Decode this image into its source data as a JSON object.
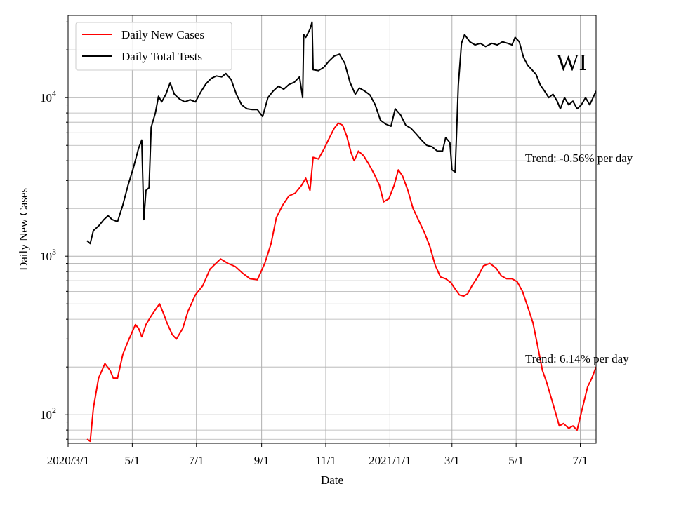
{
  "chart_data": {
    "type": "line",
    "title": "",
    "xlabel": "Date",
    "ylabel": "Daily New Cases",
    "y_scale": "log",
    "ylim": [
      66,
      33000
    ],
    "xlim": [
      "2020-03-01",
      "2021-07-16"
    ],
    "grid": true,
    "legend_position": "upper left",
    "x_ticks": [
      {
        "date": "2020-03-01",
        "label": "2020/3/1"
      },
      {
        "date": "2020-05-01",
        "label": "5/1"
      },
      {
        "date": "2020-07-01",
        "label": "7/1"
      },
      {
        "date": "2020-09-01",
        "label": "9/1"
      },
      {
        "date": "2020-11-01",
        "label": "11/1"
      },
      {
        "date": "2021-01-01",
        "label": "2021/1/1"
      },
      {
        "date": "2021-03-01",
        "label": "3/1"
      },
      {
        "date": "2021-05-01",
        "label": "5/1"
      },
      {
        "date": "2021-07-01",
        "label": "7/1"
      }
    ],
    "y_ticks": [
      {
        "value": 100,
        "base": "10",
        "exp": "2"
      },
      {
        "value": 1000,
        "base": "10",
        "exp": "3"
      },
      {
        "value": 10000,
        "base": "10",
        "exp": "4"
      }
    ],
    "series": [
      {
        "name": "Daily New Cases",
        "color": "#ff0000",
        "points": [
          [
            "2020-03-19",
            70
          ],
          [
            "2020-03-22",
            68
          ],
          [
            "2020-03-25",
            110
          ],
          [
            "2020-03-30",
            170
          ],
          [
            "2020-04-05",
            210
          ],
          [
            "2020-04-10",
            190
          ],
          [
            "2020-04-13",
            170
          ],
          [
            "2020-04-17",
            170
          ],
          [
            "2020-04-22",
            240
          ],
          [
            "2020-04-27",
            290
          ],
          [
            "2020-05-04",
            370
          ],
          [
            "2020-05-07",
            350
          ],
          [
            "2020-05-10",
            310
          ],
          [
            "2020-05-14",
            370
          ],
          [
            "2020-05-19",
            420
          ],
          [
            "2020-05-24",
            470
          ],
          [
            "2020-05-27",
            500
          ],
          [
            "2020-05-31",
            430
          ],
          [
            "2020-06-03",
            380
          ],
          [
            "2020-06-08",
            320
          ],
          [
            "2020-06-12",
            300
          ],
          [
            "2020-06-18",
            350
          ],
          [
            "2020-06-23",
            450
          ],
          [
            "2020-06-30",
            570
          ],
          [
            "2020-07-07",
            650
          ],
          [
            "2020-07-14",
            830
          ],
          [
            "2020-07-21",
            920
          ],
          [
            "2020-07-24",
            960
          ],
          [
            "2020-07-31",
            900
          ],
          [
            "2020-08-07",
            860
          ],
          [
            "2020-08-14",
            780
          ],
          [
            "2020-08-21",
            720
          ],
          [
            "2020-08-28",
            710
          ],
          [
            "2020-09-04",
            900
          ],
          [
            "2020-09-10",
            1200
          ],
          [
            "2020-09-15",
            1750
          ],
          [
            "2020-09-21",
            2100
          ],
          [
            "2020-09-27",
            2400
          ],
          [
            "2020-10-03",
            2500
          ],
          [
            "2020-10-09",
            2800
          ],
          [
            "2020-10-13",
            3100
          ],
          [
            "2020-10-17",
            2600
          ],
          [
            "2020-10-20",
            4200
          ],
          [
            "2020-10-25",
            4100
          ],
          [
            "2020-10-30",
            4700
          ],
          [
            "2020-11-04",
            5500
          ],
          [
            "2020-11-09",
            6400
          ],
          [
            "2020-11-13",
            6900
          ],
          [
            "2020-11-17",
            6700
          ],
          [
            "2020-11-21",
            5700
          ],
          [
            "2020-11-25",
            4500
          ],
          [
            "2020-11-28",
            4000
          ],
          [
            "2020-12-02",
            4600
          ],
          [
            "2020-12-07",
            4300
          ],
          [
            "2020-12-12",
            3800
          ],
          [
            "2020-12-17",
            3300
          ],
          [
            "2020-12-22",
            2800
          ],
          [
            "2020-12-26",
            2200
          ],
          [
            "2020-12-31",
            2300
          ],
          [
            "2021-01-05",
            2800
          ],
          [
            "2021-01-09",
            3500
          ],
          [
            "2021-01-13",
            3200
          ],
          [
            "2021-01-18",
            2600
          ],
          [
            "2021-01-23",
            2000
          ],
          [
            "2021-01-28",
            1700
          ],
          [
            "2021-02-03",
            1400
          ],
          [
            "2021-02-08",
            1150
          ],
          [
            "2021-02-13",
            880
          ],
          [
            "2021-02-18",
            740
          ],
          [
            "2021-02-23",
            720
          ],
          [
            "2021-02-28",
            680
          ],
          [
            "2021-03-04",
            620
          ],
          [
            "2021-03-08",
            570
          ],
          [
            "2021-03-12",
            560
          ],
          [
            "2021-03-16",
            580
          ],
          [
            "2021-03-20",
            650
          ],
          [
            "2021-03-25",
            730
          ],
          [
            "2021-03-31",
            870
          ],
          [
            "2021-04-06",
            900
          ],
          [
            "2021-04-12",
            840
          ],
          [
            "2021-04-17",
            750
          ],
          [
            "2021-04-22",
            720
          ],
          [
            "2021-04-27",
            720
          ],
          [
            "2021-05-02",
            690
          ],
          [
            "2021-05-07",
            600
          ],
          [
            "2021-05-12",
            480
          ],
          [
            "2021-05-17",
            380
          ],
          [
            "2021-05-22",
            260
          ],
          [
            "2021-05-26",
            190
          ],
          [
            "2021-05-30",
            160
          ],
          [
            "2021-06-03",
            130
          ],
          [
            "2021-06-08",
            100
          ],
          [
            "2021-06-11",
            85
          ],
          [
            "2021-06-15",
            88
          ],
          [
            "2021-06-20",
            82
          ],
          [
            "2021-06-24",
            85
          ],
          [
            "2021-06-28",
            80
          ],
          [
            "2021-07-03",
            110
          ],
          [
            "2021-07-08",
            150
          ],
          [
            "2021-07-12",
            170
          ],
          [
            "2021-07-16",
            200
          ]
        ]
      },
      {
        "name": "Daily Total Tests",
        "color": "#000000",
        "points": [
          [
            "2020-03-19",
            1250
          ],
          [
            "2020-03-22",
            1200
          ],
          [
            "2020-03-25",
            1450
          ],
          [
            "2020-03-30",
            1550
          ],
          [
            "2020-04-04",
            1700
          ],
          [
            "2020-04-08",
            1800
          ],
          [
            "2020-04-12",
            1700
          ],
          [
            "2020-04-17",
            1650
          ],
          [
            "2020-04-22",
            2100
          ],
          [
            "2020-04-27",
            2800
          ],
          [
            "2020-05-02",
            3600
          ],
          [
            "2020-05-07",
            4800
          ],
          [
            "2020-05-10",
            5400
          ],
          [
            "2020-05-12",
            1700
          ],
          [
            "2020-05-14",
            2600
          ],
          [
            "2020-05-17",
            2700
          ],
          [
            "2020-05-19",
            6500
          ],
          [
            "2020-05-23",
            8000
          ],
          [
            "2020-05-26",
            10200
          ],
          [
            "2020-05-29",
            9400
          ],
          [
            "2020-06-02",
            10500
          ],
          [
            "2020-06-06",
            12400
          ],
          [
            "2020-06-10",
            10500
          ],
          [
            "2020-06-15",
            9800
          ],
          [
            "2020-06-20",
            9400
          ],
          [
            "2020-06-25",
            9700
          ],
          [
            "2020-06-30",
            9400
          ],
          [
            "2020-07-05",
            10800
          ],
          [
            "2020-07-10",
            12200
          ],
          [
            "2020-07-15",
            13200
          ],
          [
            "2020-07-20",
            13700
          ],
          [
            "2020-07-25",
            13500
          ],
          [
            "2020-07-29",
            14200
          ],
          [
            "2020-08-03",
            13000
          ],
          [
            "2020-08-08",
            10500
          ],
          [
            "2020-08-13",
            9000
          ],
          [
            "2020-08-18",
            8500
          ],
          [
            "2020-08-23",
            8400
          ],
          [
            "2020-08-28",
            8400
          ],
          [
            "2020-09-02",
            7600
          ],
          [
            "2020-09-07",
            10000
          ],
          [
            "2020-09-12",
            11000
          ],
          [
            "2020-09-17",
            11800
          ],
          [
            "2020-09-22",
            11300
          ],
          [
            "2020-09-27",
            12100
          ],
          [
            "2020-10-02",
            12500
          ],
          [
            "2020-10-07",
            13500
          ],
          [
            "2020-10-10",
            10000
          ],
          [
            "2020-10-11",
            25000
          ],
          [
            "2020-10-13",
            24000
          ],
          [
            "2020-10-17",
            27000
          ],
          [
            "2020-10-19",
            30000
          ],
          [
            "2020-10-20",
            15000
          ],
          [
            "2020-10-25",
            14800
          ],
          [
            "2020-10-30",
            15500
          ],
          [
            "2020-11-04",
            17000
          ],
          [
            "2020-11-09",
            18300
          ],
          [
            "2020-11-14",
            18800
          ],
          [
            "2020-11-19",
            16500
          ],
          [
            "2020-11-24",
            12500
          ],
          [
            "2020-11-29",
            10500
          ],
          [
            "2020-12-03",
            11500
          ],
          [
            "2020-12-08",
            11000
          ],
          [
            "2020-12-13",
            10400
          ],
          [
            "2020-12-18",
            9000
          ],
          [
            "2020-12-23",
            7200
          ],
          [
            "2020-12-28",
            6800
          ],
          [
            "2021-01-02",
            6600
          ],
          [
            "2021-01-06",
            8500
          ],
          [
            "2021-01-11",
            7800
          ],
          [
            "2021-01-16",
            6700
          ],
          [
            "2021-01-21",
            6400
          ],
          [
            "2021-01-26",
            5900
          ],
          [
            "2021-01-31",
            5400
          ],
          [
            "2021-02-05",
            5000
          ],
          [
            "2021-02-10",
            4900
          ],
          [
            "2021-02-15",
            4600
          ],
          [
            "2021-02-20",
            4600
          ],
          [
            "2021-02-23",
            5600
          ],
          [
            "2021-02-27",
            5200
          ],
          [
            "2021-03-01",
            3500
          ],
          [
            "2021-03-04",
            3400
          ],
          [
            "2021-03-07",
            12000
          ],
          [
            "2021-03-10",
            22000
          ],
          [
            "2021-03-13",
            25000
          ],
          [
            "2021-03-18",
            22500
          ],
          [
            "2021-03-23",
            21500
          ],
          [
            "2021-03-28",
            22000
          ],
          [
            "2021-04-02",
            21000
          ],
          [
            "2021-04-08",
            22000
          ],
          [
            "2021-04-13",
            21500
          ],
          [
            "2021-04-18",
            22500
          ],
          [
            "2021-04-23",
            22000
          ],
          [
            "2021-04-27",
            21500
          ],
          [
            "2021-04-30",
            24000
          ],
          [
            "2021-05-04",
            22500
          ],
          [
            "2021-05-08",
            18000
          ],
          [
            "2021-05-12",
            16000
          ],
          [
            "2021-05-16",
            15000
          ],
          [
            "2021-05-20",
            14000
          ],
          [
            "2021-05-24",
            12000
          ],
          [
            "2021-05-28",
            11000
          ],
          [
            "2021-06-01",
            10000
          ],
          [
            "2021-06-05",
            10500
          ],
          [
            "2021-06-09",
            9500
          ],
          [
            "2021-06-12",
            8500
          ],
          [
            "2021-06-16",
            10000
          ],
          [
            "2021-06-20",
            9000
          ],
          [
            "2021-06-24",
            9500
          ],
          [
            "2021-06-28",
            8500
          ],
          [
            "2021-07-02",
            9000
          ],
          [
            "2021-07-06",
            10000
          ],
          [
            "2021-07-10",
            9000
          ],
          [
            "2021-07-16",
            11000
          ]
        ]
      }
    ],
    "annotations": [
      {
        "text": "WI"
      },
      {
        "text": "Trend: -0.56% per day"
      },
      {
        "text": "Trend: 6.14% per day"
      }
    ]
  }
}
